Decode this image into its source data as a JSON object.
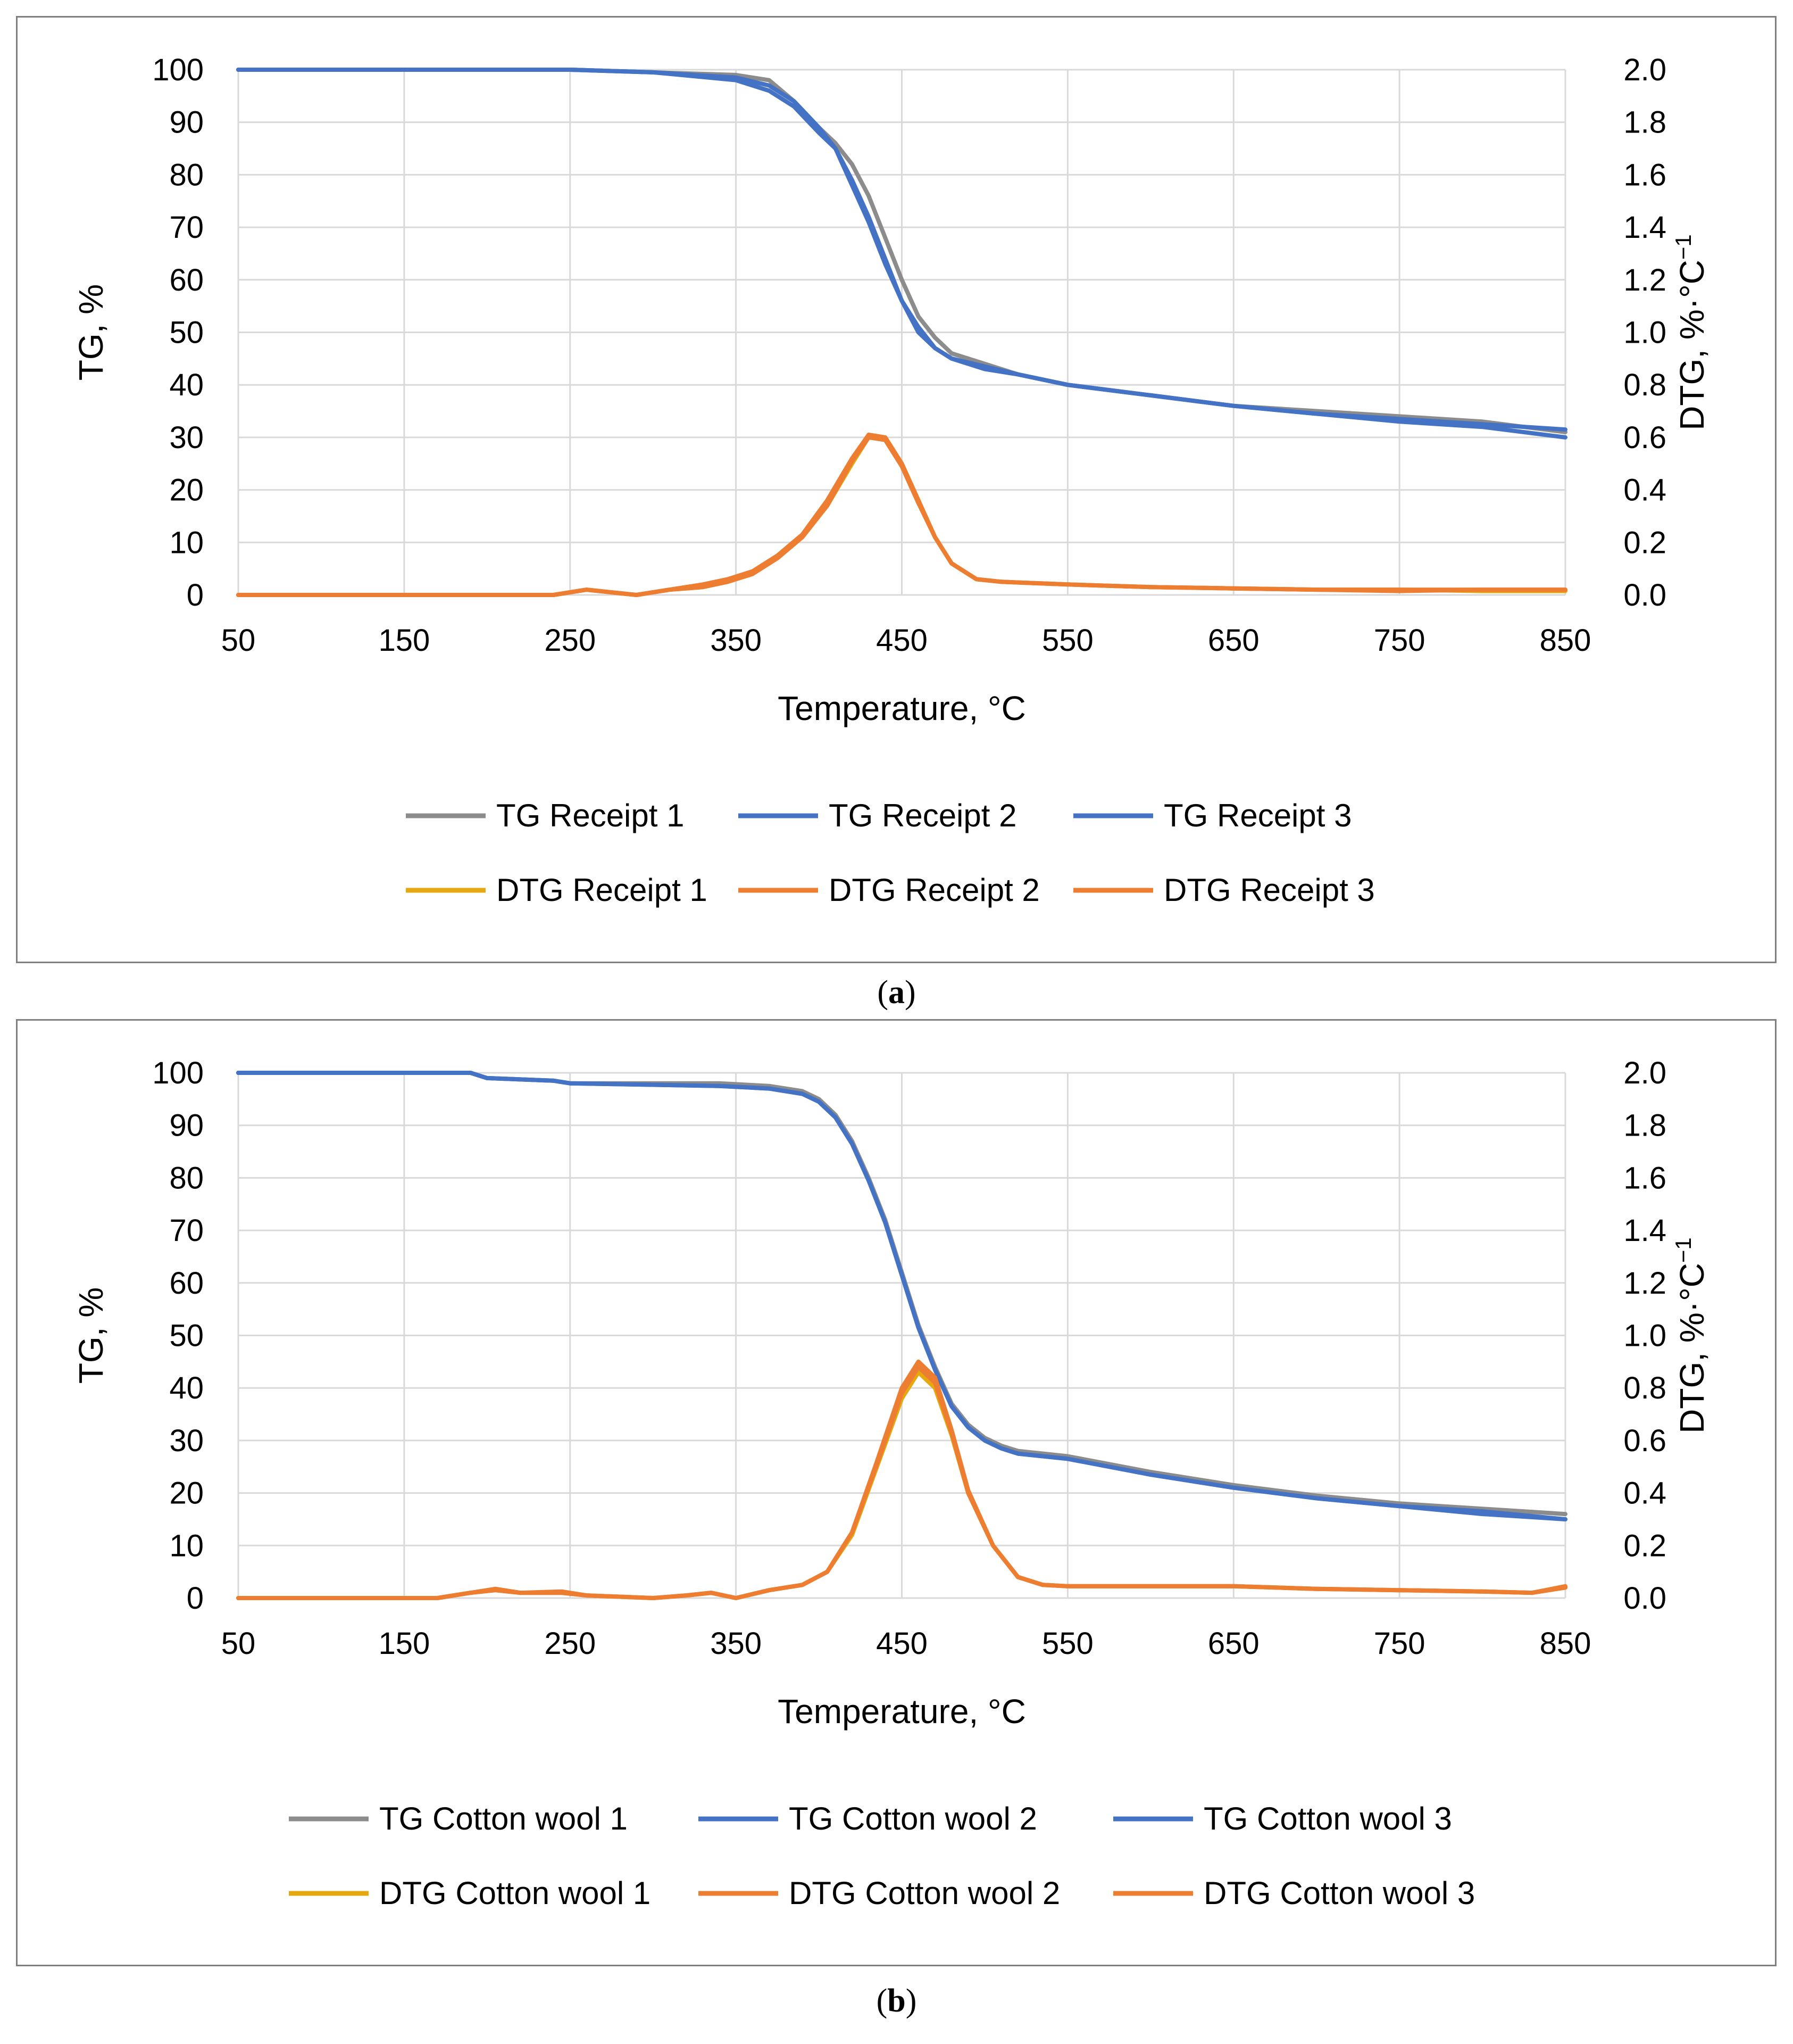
{
  "charts": [
    {
      "chart_data": {
        "type": "line",
        "xlabel": "Temperature, °C",
        "ylabel": "TG, %",
        "y2label": "DTG, %·°C",
        "y2label_sup": "−1",
        "xlim": [
          50,
          850
        ],
        "ylim": [
          0,
          100
        ],
        "y2lim": [
          0.0,
          2.0
        ],
        "x_ticks": [
          "50",
          "150",
          "250",
          "350",
          "450",
          "550",
          "650",
          "750",
          "850"
        ],
        "y_ticks": [
          "0",
          "10",
          "20",
          "30",
          "40",
          "50",
          "60",
          "70",
          "80",
          "90",
          "100"
        ],
        "y2_ticks": [
          "0.0",
          "0.2",
          "0.4",
          "0.6",
          "0.8",
          "1.0",
          "1.2",
          "1.4",
          "1.6",
          "1.8",
          "2.0"
        ],
        "grid": true,
        "legend_position": "bottom",
        "series": [
          {
            "name": "TG Receipt  1",
            "axis": "left",
            "color": "#8c8c8c",
            "x": [
              50,
              250,
              350,
              370,
              385,
              400,
              410,
              420,
              430,
              440,
              450,
              460,
              470,
              480,
              500,
              520,
              550,
              600,
              650,
              700,
              750,
              800,
              850
            ],
            "y": [
              100,
              100,
              99,
              98,
              94,
              89,
              86,
              82,
              76,
              68,
              60,
              53,
              49,
              46,
              44,
              42,
              40,
              38,
              36,
              35,
              34,
              33,
              31
            ]
          },
          {
            "name": "TG Receipt  2",
            "axis": "left",
            "color": "#4472c4",
            "x": [
              50,
              250,
              300,
              350,
              370,
              385,
              400,
              410,
              420,
              430,
              440,
              450,
              460,
              470,
              480,
              500,
              520,
              550,
              600,
              650,
              700,
              750,
              800,
              850
            ],
            "y": [
              100,
              100,
              99.5,
              98,
              96,
              93,
              88,
              85,
              78,
              71,
              63,
              56,
              50,
              47,
              45,
              43,
              42,
              40,
              38,
              36,
              34.5,
              33.5,
              32.5,
              31.5
            ]
          },
          {
            "name": "TG Receipt  3",
            "axis": "left",
            "color": "#4472c4",
            "x": [
              50,
              250,
              300,
              350,
              370,
              385,
              400,
              410,
              420,
              430,
              440,
              450,
              460,
              470,
              480,
              500,
              520,
              550,
              600,
              650,
              700,
              750,
              800,
              850
            ],
            "y": [
              100,
              100,
              99.5,
              98.5,
              97,
              94,
              89,
              85,
              79,
              72,
              64,
              56,
              51,
              47,
              45,
              43.5,
              42,
              40,
              38,
              36,
              34.5,
              33,
              32,
              30
            ]
          },
          {
            "name": "DTG Receipt 1",
            "axis": "right",
            "color": "#e5a80e",
            "x": [
              50,
              240,
              260,
              275,
              290,
              310,
              330,
              345,
              360,
              375,
              390,
              405,
              420,
              430,
              440,
              450,
              460,
              470,
              480,
              495,
              510,
              550,
              600,
              650,
              700,
              750,
              800,
              850
            ],
            "y": [
              0,
              0,
              0.02,
              0.01,
              0,
              0.02,
              0.03,
              0.05,
              0.08,
              0.14,
              0.22,
              0.34,
              0.5,
              0.6,
              0.6,
              0.5,
              0.36,
              0.22,
              0.12,
              0.06,
              0.05,
              0.04,
              0.03,
              0.025,
              0.02,
              0.02,
              0.015,
              0.015
            ]
          },
          {
            "name": "DTG Receipt 2",
            "axis": "right",
            "color": "#ed7d31",
            "x": [
              50,
              240,
              260,
              275,
              290,
              310,
              330,
              345,
              360,
              375,
              390,
              405,
              420,
              430,
              440,
              450,
              460,
              470,
              480,
              495,
              510,
              550,
              600,
              650,
              700,
              750,
              800,
              850
            ],
            "y": [
              0,
              0,
              0.02,
              0.01,
              0,
              0.02,
              0.04,
              0.06,
              0.09,
              0.15,
              0.23,
              0.36,
              0.52,
              0.61,
              0.6,
              0.5,
              0.36,
              0.22,
              0.12,
              0.06,
              0.05,
              0.04,
              0.03,
              0.025,
              0.02,
              0.02,
              0.02,
              0.02
            ]
          },
          {
            "name": "DTG Receipt 3",
            "axis": "right",
            "color": "#ed7d31",
            "x": [
              50,
              240,
              260,
              275,
              290,
              310,
              330,
              345,
              360,
              375,
              390,
              405,
              420,
              430,
              440,
              450,
              460,
              470,
              480,
              495,
              510,
              550,
              600,
              650,
              700,
              750,
              800,
              850
            ],
            "y": [
              0,
              0,
              0.02,
              0.01,
              0,
              0.02,
              0.03,
              0.05,
              0.08,
              0.14,
              0.22,
              0.34,
              0.51,
              0.6,
              0.59,
              0.49,
              0.35,
              0.22,
              0.12,
              0.06,
              0.05,
              0.04,
              0.03,
              0.025,
              0.02,
              0.015,
              0.02,
              0.02
            ]
          }
        ]
      },
      "caption_label": "a"
    },
    {
      "chart_data": {
        "type": "line",
        "xlabel": "Temperature, °C",
        "ylabel": "TG, %",
        "y2label": "DTG, %·°C",
        "y2label_sup": "−1",
        "xlim": [
          50,
          850
        ],
        "ylim": [
          0,
          100
        ],
        "y2lim": [
          0.0,
          2.0
        ],
        "x_ticks": [
          "50",
          "150",
          "250",
          "350",
          "450",
          "550",
          "650",
          "750",
          "850"
        ],
        "y_ticks": [
          "0",
          "10",
          "20",
          "30",
          "40",
          "50",
          "60",
          "70",
          "80",
          "90",
          "100"
        ],
        "y2_ticks": [
          "0.0",
          "0.2",
          "0.4",
          "0.6",
          "0.8",
          "1.0",
          "1.2",
          "1.4",
          "1.6",
          "1.8",
          "2.0"
        ],
        "grid": true,
        "legend_position": "bottom",
        "series": [
          {
            "name": "TG Cotton wool  1",
            "axis": "left",
            "color": "#8c8c8c",
            "x": [
              50,
              190,
              200,
              240,
              250,
              340,
              370,
              390,
              400,
              410,
              420,
              430,
              440,
              450,
              460,
              470,
              480,
              490,
              500,
              510,
              520,
              550,
              600,
              650,
              700,
              750,
              800,
              850
            ],
            "y": [
              100,
              100,
              99,
              98.5,
              98,
              98,
              97.5,
              96.5,
              95,
              92,
              87,
              80,
              72,
              62,
              52,
              44,
              37,
              33,
              30.5,
              29,
              28,
              27,
              24,
              21.5,
              19.5,
              18,
              17,
              16
            ]
          },
          {
            "name": "TG Cotton wool  2",
            "axis": "left",
            "color": "#4472c4",
            "x": [
              50,
              190,
              200,
              240,
              250,
              340,
              370,
              390,
              400,
              410,
              420,
              430,
              440,
              450,
              460,
              470,
              480,
              490,
              500,
              510,
              520,
              550,
              600,
              650,
              700,
              750,
              800,
              850
            ],
            "y": [
              100,
              100,
              99,
              98.5,
              98,
              97.5,
              97,
              96,
              94.5,
              91.5,
              86.5,
              79.5,
              71.5,
              61.5,
              51.5,
              43.5,
              36.5,
              32.5,
              30,
              28.5,
              27.5,
              26.5,
              23.5,
              21,
              19,
              17.5,
              16.5,
              15
            ]
          },
          {
            "name": "TG Cotton wool  3",
            "axis": "left",
            "color": "#4472c4",
            "x": [
              50,
              190,
              200,
              240,
              250,
              340,
              370,
              390,
              400,
              410,
              420,
              430,
              440,
              450,
              460,
              470,
              480,
              490,
              500,
              510,
              520,
              550,
              600,
              650,
              700,
              750,
              800,
              850
            ],
            "y": [
              100,
              100,
              99,
              98.5,
              98,
              97.5,
              97,
              96,
              94.5,
              91.5,
              86.5,
              79.5,
              71.5,
              61.5,
              51.5,
              43.5,
              36.5,
              32.5,
              30,
              28.5,
              27.5,
              26.5,
              23.5,
              21,
              19,
              17.5,
              16,
              15
            ]
          },
          {
            "name": "DTG Cotton wool 1",
            "axis": "right",
            "color": "#e5a80e",
            "x": [
              50,
              170,
              190,
              205,
              220,
              245,
              260,
              300,
              320,
              335,
              350,
              370,
              390,
              405,
              420,
              435,
              450,
              460,
              470,
              480,
              490,
              505,
              520,
              535,
              550,
              600,
              650,
              700,
              750,
              800,
              830,
              850
            ],
            "y": [
              0,
              0,
              0.02,
              0.03,
              0.02,
              0.02,
              0.01,
              0,
              0.01,
              0.02,
              0,
              0.03,
              0.05,
              0.1,
              0.24,
              0.5,
              0.76,
              0.86,
              0.8,
              0.62,
              0.4,
              0.2,
              0.08,
              0.05,
              0.045,
              0.045,
              0.045,
              0.035,
              0.03,
              0.025,
              0.02,
              0.04
            ]
          },
          {
            "name": "DTG Cotton wool 2",
            "axis": "right",
            "color": "#ed7d31",
            "x": [
              50,
              170,
              190,
              205,
              220,
              245,
              260,
              300,
              320,
              335,
              350,
              370,
              390,
              405,
              420,
              435,
              450,
              460,
              470,
              480,
              490,
              505,
              520,
              535,
              550,
              600,
              650,
              700,
              750,
              800,
              830,
              850
            ],
            "y": [
              0,
              0,
              0.02,
              0.035,
              0.02,
              0.025,
              0.01,
              0,
              0.01,
              0.02,
              0,
              0.03,
              0.05,
              0.1,
              0.25,
              0.52,
              0.8,
              0.9,
              0.84,
              0.64,
              0.41,
              0.2,
              0.08,
              0.05,
              0.045,
              0.045,
              0.045,
              0.035,
              0.03,
              0.025,
              0.02,
              0.04
            ]
          },
          {
            "name": "DTG Cotton wool 3",
            "axis": "right",
            "color": "#ed7d31",
            "x": [
              50,
              170,
              190,
              205,
              220,
              245,
              260,
              300,
              320,
              335,
              350,
              370,
              390,
              405,
              420,
              435,
              450,
              460,
              470,
              480,
              490,
              505,
              520,
              535,
              550,
              600,
              650,
              700,
              750,
              800,
              830,
              850
            ],
            "y": [
              0,
              0,
              0.02,
              0.03,
              0.02,
              0.02,
              0.01,
              0,
              0.01,
              0.02,
              0,
              0.03,
              0.05,
              0.1,
              0.25,
              0.51,
              0.78,
              0.88,
              0.82,
              0.63,
              0.4,
              0.2,
              0.08,
              0.05,
              0.045,
              0.045,
              0.045,
              0.035,
              0.03,
              0.025,
              0.02,
              0.045
            ]
          }
        ]
      },
      "caption_label": "b"
    }
  ]
}
